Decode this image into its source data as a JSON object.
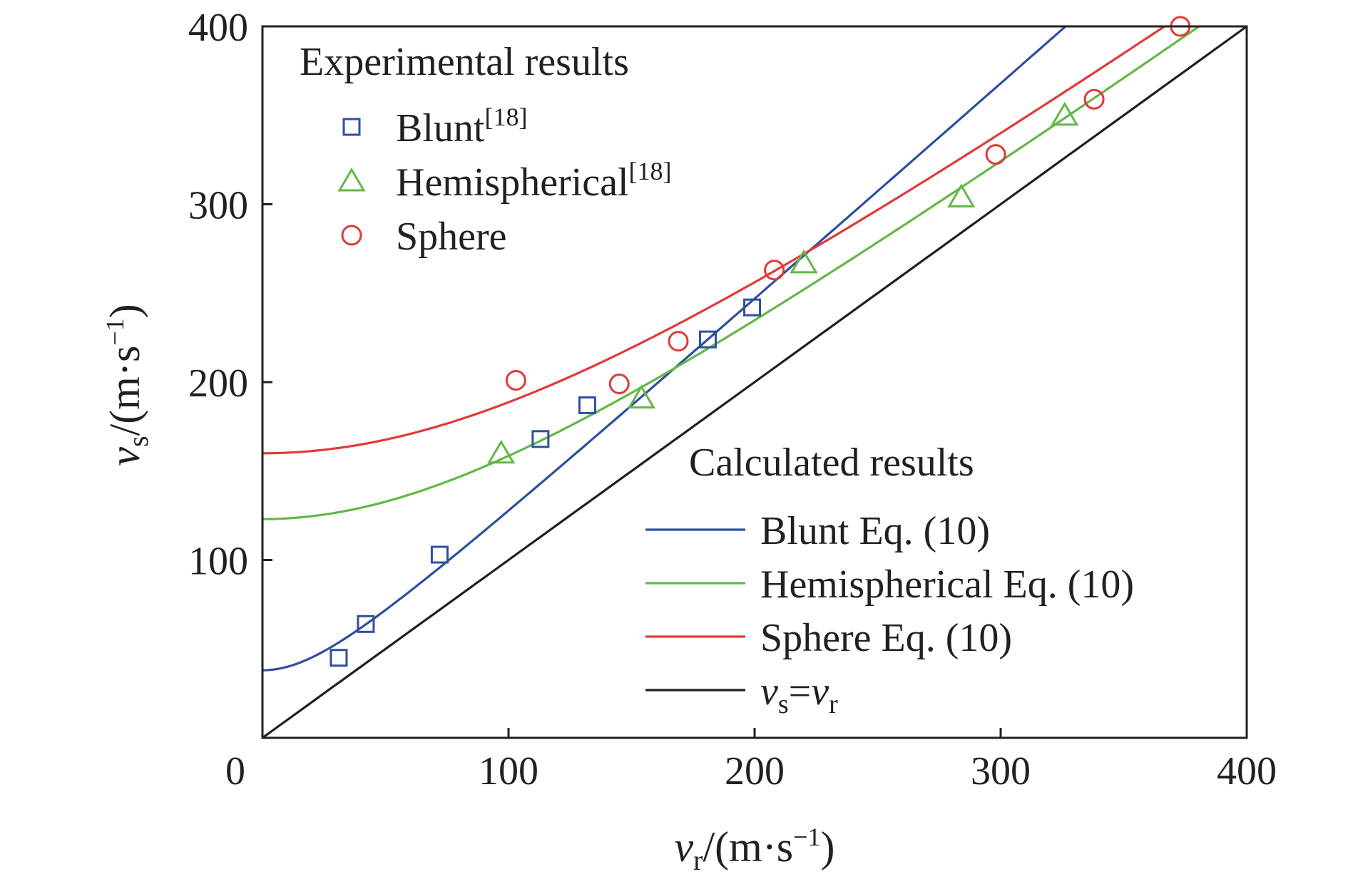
{
  "chart_data": {
    "type": "scatter",
    "xlim": [
      0,
      400
    ],
    "ylim": [
      0,
      400
    ],
    "x_ticks": [
      "0",
      "100",
      "200",
      "300",
      "400"
    ],
    "y_ticks": [
      "100",
      "200",
      "300",
      "400"
    ],
    "xlabel": {
      "main": "v",
      "sub": "r",
      "unit_pre": "/(m·s",
      "sup": "−1",
      "unit_post": ")"
    },
    "ylabel": {
      "main": "v",
      "sub": "s",
      "unit_pre": "/(m·s",
      "sup": "−1",
      "unit_post": ")"
    },
    "grid": false,
    "experimental_title": "Experimental results",
    "calculated_title": "Calculated results",
    "experimental": [
      {
        "name": "Blunt",
        "ref": "[18]",
        "marker": "square",
        "color": "#2e4fa0",
        "points": [
          [
            31,
            45
          ],
          [
            42,
            64
          ],
          [
            72,
            103
          ],
          [
            113,
            168
          ],
          [
            132,
            187
          ],
          [
            181,
            224
          ],
          [
            199,
            242
          ]
        ]
      },
      {
        "name": "Hemispherical",
        "ref": "[18]",
        "marker": "triangle",
        "color": "#62b846",
        "points": [
          [
            97,
            160
          ],
          [
            154,
            191
          ],
          [
            220,
            267
          ],
          [
            284,
            304
          ],
          [
            326,
            350
          ]
        ]
      },
      {
        "name": "Sphere",
        "ref": "",
        "marker": "circle",
        "color": "#e03a3a",
        "points": [
          [
            103,
            201
          ],
          [
            145,
            199
          ],
          [
            169,
            223
          ],
          [
            208,
            263
          ],
          [
            298,
            328
          ],
          [
            338,
            359
          ],
          [
            373,
            400
          ]
        ]
      }
    ],
    "calculated": [
      {
        "name": "Blunt Eq. (10)",
        "color": "#2e4fa0",
        "v0": 38,
        "k": 1.22
      },
      {
        "name": "Hemispherical Eq. (10)",
        "color": "#62b846",
        "v0": 123,
        "k": 1.0
      },
      {
        "name": "Sphere Eq. (10)",
        "color": "#e03a3a",
        "v0": 160,
        "k": 1.0
      },
      {
        "name": "vs=vr",
        "label": {
          "a": "v",
          "a_sub": "s",
          "eq": "=",
          "b": "v",
          "b_sub": "r"
        },
        "color": "#231f20",
        "v0": 0,
        "k": 1.0
      }
    ]
  }
}
